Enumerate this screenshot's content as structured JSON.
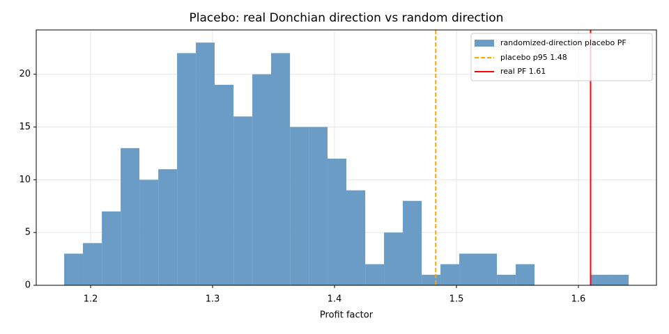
{
  "chart_data": {
    "type": "histogram",
    "title": "Placebo: real Donchian direction vs random direction",
    "xlabel": "Profit factor",
    "name": "randomized-direction placebo PF",
    "color": "#6a9cc6",
    "bins": [
      1.1783,
      1.1937,
      1.2092,
      1.2246,
      1.24,
      1.2555,
      1.2709,
      1.2863,
      1.3017,
      1.3172,
      1.3326,
      1.348,
      1.3635,
      1.3789,
      1.3943,
      1.4097,
      1.4252,
      1.4406,
      1.456,
      1.4715,
      1.4869,
      1.5023,
      1.5177,
      1.5332,
      1.5486,
      1.564,
      1.5795,
      1.5949,
      1.6103,
      1.6257,
      1.6412
    ],
    "values": [
      3,
      4,
      7,
      13,
      10,
      11,
      22,
      23,
      19,
      16,
      20,
      22,
      15,
      15,
      12,
      9,
      2,
      5,
      8,
      1,
      2,
      3,
      3,
      1,
      2,
      0,
      0,
      0,
      1,
      1
    ],
    "lines": [
      {
        "name": "placebo p95 1.48",
        "value": 1.483,
        "color": "#ffa500",
        "dashed": true
      },
      {
        "name": "real PF 1.61",
        "value": 1.61,
        "color": "#ff0000",
        "dashed": false
      }
    ],
    "xlim": [
      1.1554,
      1.664
    ],
    "ylim": [
      0,
      24.2
    ],
    "xticks": [
      1.2,
      1.3,
      1.4,
      1.5,
      1.6
    ],
    "yticks": [
      0,
      5,
      10,
      15,
      20
    ],
    "grid": true,
    "legend": "upper-right"
  }
}
